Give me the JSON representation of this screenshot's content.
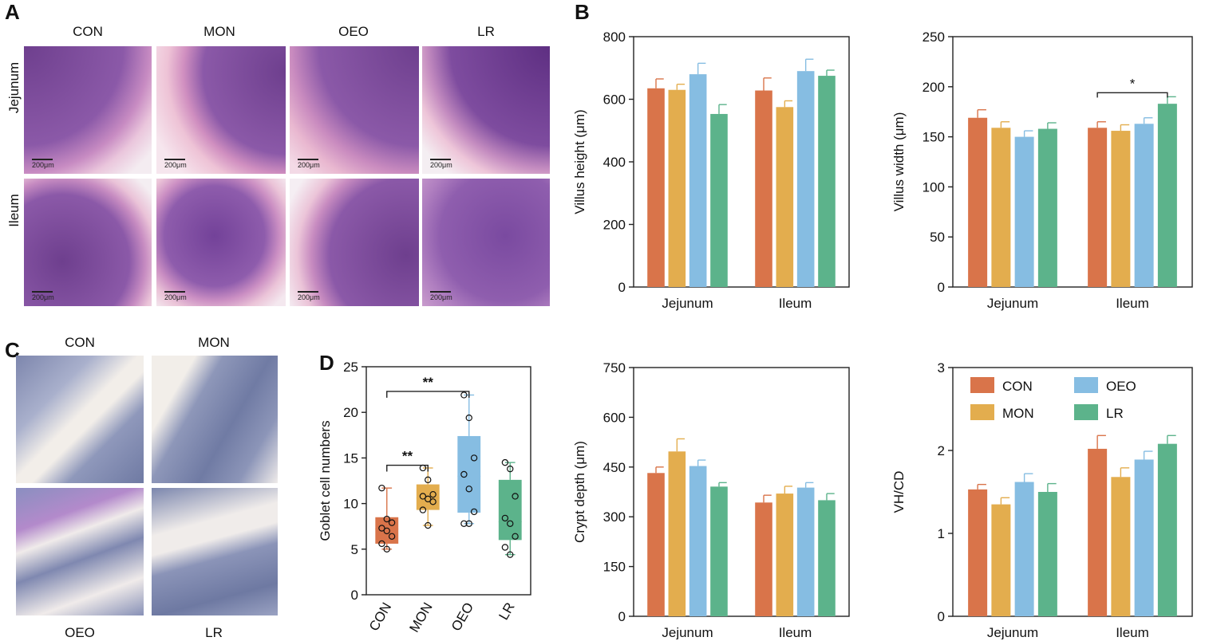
{
  "panels": {
    "a": "A",
    "b": "B",
    "c": "C",
    "d": "D"
  },
  "panel_a": {
    "groups": [
      "CON",
      "MON",
      "OEO",
      "LR"
    ],
    "rows": [
      "Jejunum",
      "Ileum"
    ],
    "scale_label": "200μm"
  },
  "panel_c": {
    "labels_top": [
      "CON",
      "MON"
    ],
    "labels_bottom": [
      "OEO",
      "LR"
    ]
  },
  "colors": {
    "CON": "#d9744a",
    "MON": "#e3ad4e",
    "OEO": "#86bde2",
    "LR": "#5cb38b",
    "stain_he": "#b07fc0",
    "stain_pas": "#9aa6c7"
  },
  "chart_data": [
    {
      "id": "villus-height",
      "type": "bar",
      "title": "",
      "categories": [
        "Jejunum",
        "Ileum"
      ],
      "ylabel": "Villus height (μm)",
      "ylim": [
        0,
        800
      ],
      "yticks": [
        0,
        200,
        400,
        600,
        800
      ],
      "series": [
        {
          "name": "CON",
          "values": [
            635,
            628
          ],
          "errors": [
            30,
            40
          ]
        },
        {
          "name": "MON",
          "values": [
            630,
            575
          ],
          "errors": [
            18,
            20
          ]
        },
        {
          "name": "OEO",
          "values": [
            680,
            690
          ],
          "errors": [
            35,
            38
          ]
        },
        {
          "name": "LR",
          "values": [
            553,
            675
          ],
          "errors": [
            30,
            18
          ]
        }
      ],
      "annotations": []
    },
    {
      "id": "villus-width",
      "type": "bar",
      "title": "",
      "categories": [
        "Jejunum",
        "Ileum"
      ],
      "ylabel": "Villus width (μm)",
      "ylim": [
        0,
        250
      ],
      "yticks": [
        0,
        50,
        100,
        150,
        200,
        250
      ],
      "series": [
        {
          "name": "CON",
          "values": [
            169,
            159
          ],
          "errors": [
            8,
            6
          ]
        },
        {
          "name": "MON",
          "values": [
            159,
            156
          ],
          "errors": [
            6,
            6
          ]
        },
        {
          "name": "OEO",
          "values": [
            150,
            163
          ],
          "errors": [
            6,
            6
          ]
        },
        {
          "name": "LR",
          "values": [
            158,
            183
          ],
          "errors": [
            6,
            7
          ]
        }
      ],
      "annotations": [
        {
          "text": "*",
          "from": "Ileum-CON",
          "to": "Ileum-LR",
          "y": 194
        }
      ]
    },
    {
      "id": "crypt-depth",
      "type": "bar",
      "title": "",
      "categories": [
        "Jejunum",
        "Ileum"
      ],
      "ylabel": "Crypt depth (μm)",
      "ylim": [
        0,
        750
      ],
      "yticks": [
        0,
        150,
        300,
        450,
        600,
        750
      ],
      "series": [
        {
          "name": "CON",
          "values": [
            432,
            343
          ],
          "errors": [
            18,
            22
          ]
        },
        {
          "name": "MON",
          "values": [
            497,
            370
          ],
          "errors": [
            38,
            22
          ]
        },
        {
          "name": "OEO",
          "values": [
            453,
            388
          ],
          "errors": [
            18,
            15
          ]
        },
        {
          "name": "LR",
          "values": [
            391,
            350
          ],
          "errors": [
            12,
            20
          ]
        }
      ],
      "annotations": []
    },
    {
      "id": "vh-cd",
      "type": "bar",
      "title": "",
      "categories": [
        "Jejunum",
        "Ileum"
      ],
      "ylabel": "VH/CD",
      "ylim": [
        0,
        3
      ],
      "yticks": [
        0,
        1,
        2,
        3
      ],
      "series": [
        {
          "name": "CON",
          "values": [
            1.53,
            2.02
          ],
          "errors": [
            0.06,
            0.16
          ]
        },
        {
          "name": "MON",
          "values": [
            1.35,
            1.68
          ],
          "errors": [
            0.08,
            0.11
          ]
        },
        {
          "name": "OEO",
          "values": [
            1.62,
            1.89
          ],
          "errors": [
            0.1,
            0.1
          ]
        },
        {
          "name": "LR",
          "values": [
            1.5,
            2.08
          ],
          "errors": [
            0.1,
            0.1
          ]
        }
      ],
      "legend": {
        "entries": [
          "CON",
          "OEO",
          "MON",
          "LR"
        ],
        "placement": "top"
      },
      "annotations": []
    },
    {
      "id": "goblet-cells",
      "type": "box",
      "title": "",
      "categories": [
        "CON",
        "MON",
        "OEO",
        "LR"
      ],
      "ylabel": "Goblet cell numbers",
      "ylim": [
        0,
        25
      ],
      "yticks": [
        0,
        5,
        10,
        15,
        20,
        25
      ],
      "boxes": [
        {
          "name": "CON",
          "min": 5.0,
          "q1": 5.6,
          "median": 7.2,
          "q3": 8.5,
          "max": 11.7,
          "points": [
            11.7,
            8.3,
            7.9,
            7.3,
            7.0,
            6.4,
            5.6,
            5.0
          ]
        },
        {
          "name": "MON",
          "min": 7.6,
          "q1": 9.3,
          "median": 10.6,
          "q3": 12.1,
          "max": 13.9,
          "points": [
            13.9,
            12.6,
            11.0,
            10.8,
            10.5,
            10.2,
            9.3,
            7.6
          ]
        },
        {
          "name": "OEO",
          "min": 7.8,
          "q1": 9.0,
          "median": 13.0,
          "q3": 17.4,
          "max": 21.9,
          "points": [
            21.9,
            19.4,
            15.0,
            13.2,
            11.6,
            9.1,
            7.8,
            7.8
          ]
        },
        {
          "name": "LR",
          "min": 4.4,
          "q1": 6.0,
          "median": 8.0,
          "q3": 12.6,
          "max": 14.5,
          "points": [
            14.5,
            13.8,
            10.8,
            8.4,
            7.8,
            6.4,
            5.2,
            4.4
          ]
        }
      ],
      "annotations": [
        {
          "text": "**",
          "from": "CON",
          "to": "MON",
          "y": 14.2
        },
        {
          "text": "**",
          "from": "CON",
          "to": "OEO",
          "y": 22.3
        }
      ]
    }
  ]
}
